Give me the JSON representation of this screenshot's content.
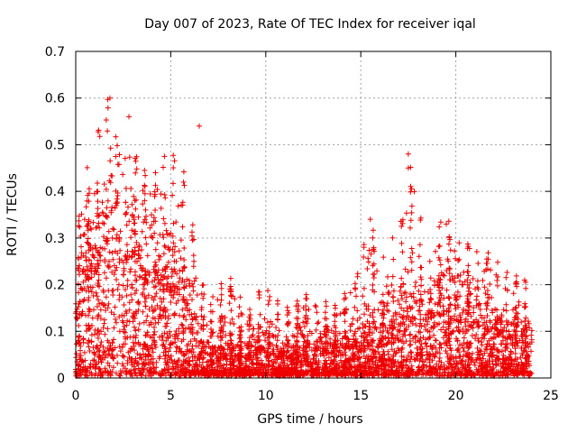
{
  "chart_data": {
    "type": "scatter",
    "title": "Day 007 of 2023, Rate Of TEC Index for receiver iqal",
    "xlabel": "GPS time / hours",
    "ylabel": "ROTI / TECUs",
    "xlim": [
      0,
      25
    ],
    "ylim": [
      0,
      0.7
    ],
    "xticks": [
      "0",
      "5",
      "10",
      "15",
      "20",
      "25"
    ],
    "yticks": [
      "0",
      "0.1",
      "0.2",
      "0.3",
      "0.4",
      "0.5",
      "0.6",
      "0.7"
    ],
    "grid": true,
    "marker": "+",
    "color": "#ee0000",
    "series": [
      {
        "name": "ROTI",
        "envelope_x_hours": [
          0,
          0.5,
          1,
          1.3,
          1.7,
          2,
          2.5,
          3,
          3.5,
          4,
          4.5,
          5,
          5.5,
          6,
          6.5,
          7,
          8,
          9,
          10,
          11,
          12,
          13,
          14,
          15,
          15.5,
          16,
          17,
          17.5,
          18,
          19,
          19.5,
          20,
          21,
          22,
          23,
          24
        ],
        "envelope_max_roti": [
          0.3,
          0.45,
          0.43,
          0.58,
          0.6,
          0.52,
          0.46,
          0.5,
          0.44,
          0.42,
          0.47,
          0.48,
          0.49,
          0.35,
          0.25,
          0.15,
          0.22,
          0.14,
          0.2,
          0.14,
          0.17,
          0.16,
          0.15,
          0.3,
          0.34,
          0.24,
          0.33,
          0.48,
          0.36,
          0.33,
          0.34,
          0.3,
          0.3,
          0.25,
          0.22,
          0.19
        ],
        "envelope_typical_roti": [
          0.12,
          0.2,
          0.22,
          0.25,
          0.26,
          0.25,
          0.22,
          0.23,
          0.2,
          0.2,
          0.2,
          0.18,
          0.16,
          0.1,
          0.06,
          0.05,
          0.05,
          0.04,
          0.05,
          0.04,
          0.05,
          0.05,
          0.05,
          0.07,
          0.08,
          0.06,
          0.09,
          0.12,
          0.12,
          0.13,
          0.13,
          0.12,
          0.11,
          0.09,
          0.08,
          0.06
        ]
      }
    ],
    "notable_points": [
      {
        "x": 1.8,
        "y": 0.6
      },
      {
        "x": 2.8,
        "y": 0.56
      },
      {
        "x": 6.5,
        "y": 0.54
      },
      {
        "x": 17.5,
        "y": 0.48
      },
      {
        "x": 17.5,
        "y": 0.45
      },
      {
        "x": 15.5,
        "y": 0.34
      },
      {
        "x": 19.5,
        "y": 0.33
      }
    ]
  }
}
